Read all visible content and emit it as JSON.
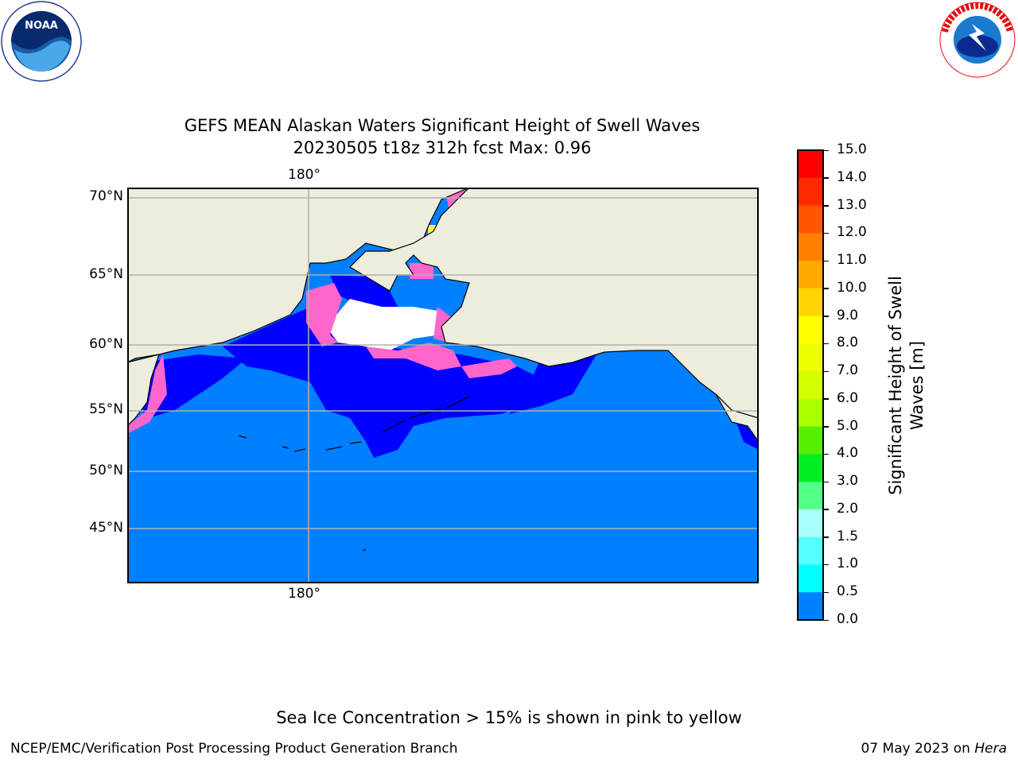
{
  "logos": {
    "left": "NOAA",
    "right": "NATIONAL WEATHER SERVICE"
  },
  "title": {
    "line1": "GEFS MEAN Alaskan Waters Significant Height of Swell Waves",
    "line2": "20230505 t18z 312h fcst   Max: 0.96"
  },
  "map": {
    "lon_label_top": "180°",
    "lon_label_bottom": "180°",
    "lat_labels": [
      "70°N",
      "65°N",
      "60°N",
      "55°N",
      "50°N",
      "45°N"
    ],
    "colors": {
      "land": "#eeecdc",
      "ocean": "#0080ff",
      "calm": "#0000ff",
      "ice_pink": "#ff66cc",
      "ice_white": "#ffffff",
      "ice_yellow": "#ffee55",
      "grid": "#b0b0b0"
    }
  },
  "colorbar": {
    "label_line1": "Significant Height of Swell",
    "label_line2": "Waves [m]",
    "ticks": [
      "15.0",
      "14.0",
      "13.0",
      "12.0",
      "11.0",
      "10.0",
      "9.0",
      "8.0",
      "7.0",
      "6.0",
      "5.0",
      "4.0",
      "3.0",
      "2.0",
      "1.5",
      "1.0",
      "0.5",
      "0.0"
    ],
    "colors_top_down": [
      "#ff0000",
      "#ff2a00",
      "#ff5500",
      "#ff8000",
      "#ffaa00",
      "#ffd400",
      "#ffff00",
      "#eeff00",
      "#d4ff00",
      "#aaff00",
      "#55ee00",
      "#00ee22",
      "#55ff88",
      "#aaffff",
      "#55ffff",
      "#00ffff",
      "#0080ff",
      "#0000ff"
    ]
  },
  "footnote": "Sea Ice Concentration > 15% is shown in pink to yellow",
  "credit_left": "NCEP/EMC/Verification Post Processing Product Generation Branch",
  "credit_right_prefix": "07 May 2023 on ",
  "credit_right_host": "Hera"
}
